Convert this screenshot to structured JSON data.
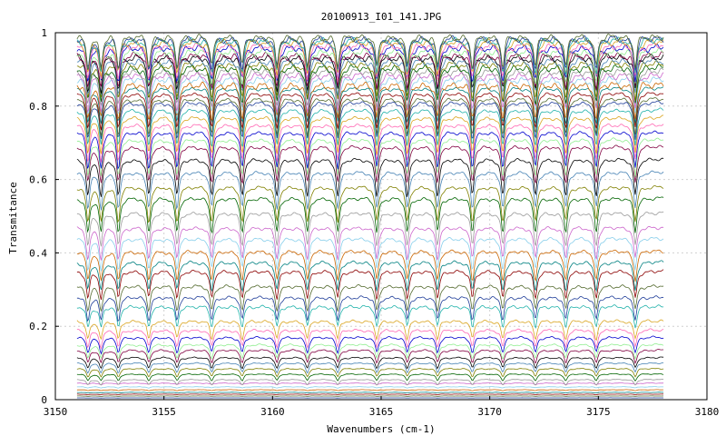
{
  "chart_data": {
    "type": "line",
    "title": "20100913_I01_141.JPG",
    "xlabel": "Wavenumbers (cm-1)",
    "ylabel": "Transmitance",
    "xlim": [
      3150,
      3180
    ],
    "ylim": [
      0,
      1
    ],
    "x_range": [
      3151,
      3178
    ],
    "xticks": [
      "3150",
      "3155",
      "3160",
      "3165",
      "3170",
      "3175",
      "3180"
    ],
    "yticks": [
      "0",
      "0.2",
      "0.4",
      "0.6",
      "0.8",
      "1"
    ],
    "grid": true,
    "legend": "none",
    "absorption_lines_x": [
      3151.5,
      3152.1,
      3152.9,
      3154.3,
      3155.6,
      3157.2,
      3158.6,
      3160.2,
      3161.6,
      3163.0,
      3164.8,
      3166.2,
      3167.6,
      3169.2,
      3170.6,
      3172.1,
      3173.5,
      3174.9,
      3176.7
    ],
    "series_baselines": [
      0.005,
      0.01,
      0.015,
      0.02,
      0.027,
      0.035,
      0.045,
      0.055,
      0.07,
      0.085,
      0.1,
      0.115,
      0.135,
      0.15,
      0.17,
      0.19,
      0.215,
      0.255,
      0.28,
      0.31,
      0.35,
      0.375,
      0.405,
      0.44,
      0.47,
      0.51,
      0.55,
      0.58,
      0.62,
      0.655,
      0.69,
      0.71,
      0.73,
      0.75,
      0.77,
      0.79,
      0.81,
      0.82,
      0.835,
      0.85,
      0.86,
      0.875,
      0.885,
      0.895,
      0.905,
      0.915,
      0.925,
      0.935,
      0.94,
      0.95,
      0.96,
      0.965,
      0.975,
      0.98,
      0.985,
      0.99
    ],
    "colors": [
      "#1f3d99",
      "#556b2f",
      "#8b0000",
      "#008080",
      "#cc6600",
      "#87ceeb",
      "#cc66cc",
      "#999999",
      "#006400",
      "#808000",
      "#4682b4",
      "#000000",
      "#800040",
      "#90ee90",
      "#0000cd",
      "#ff69b4",
      "#daa520",
      "#20b2aa"
    ]
  }
}
